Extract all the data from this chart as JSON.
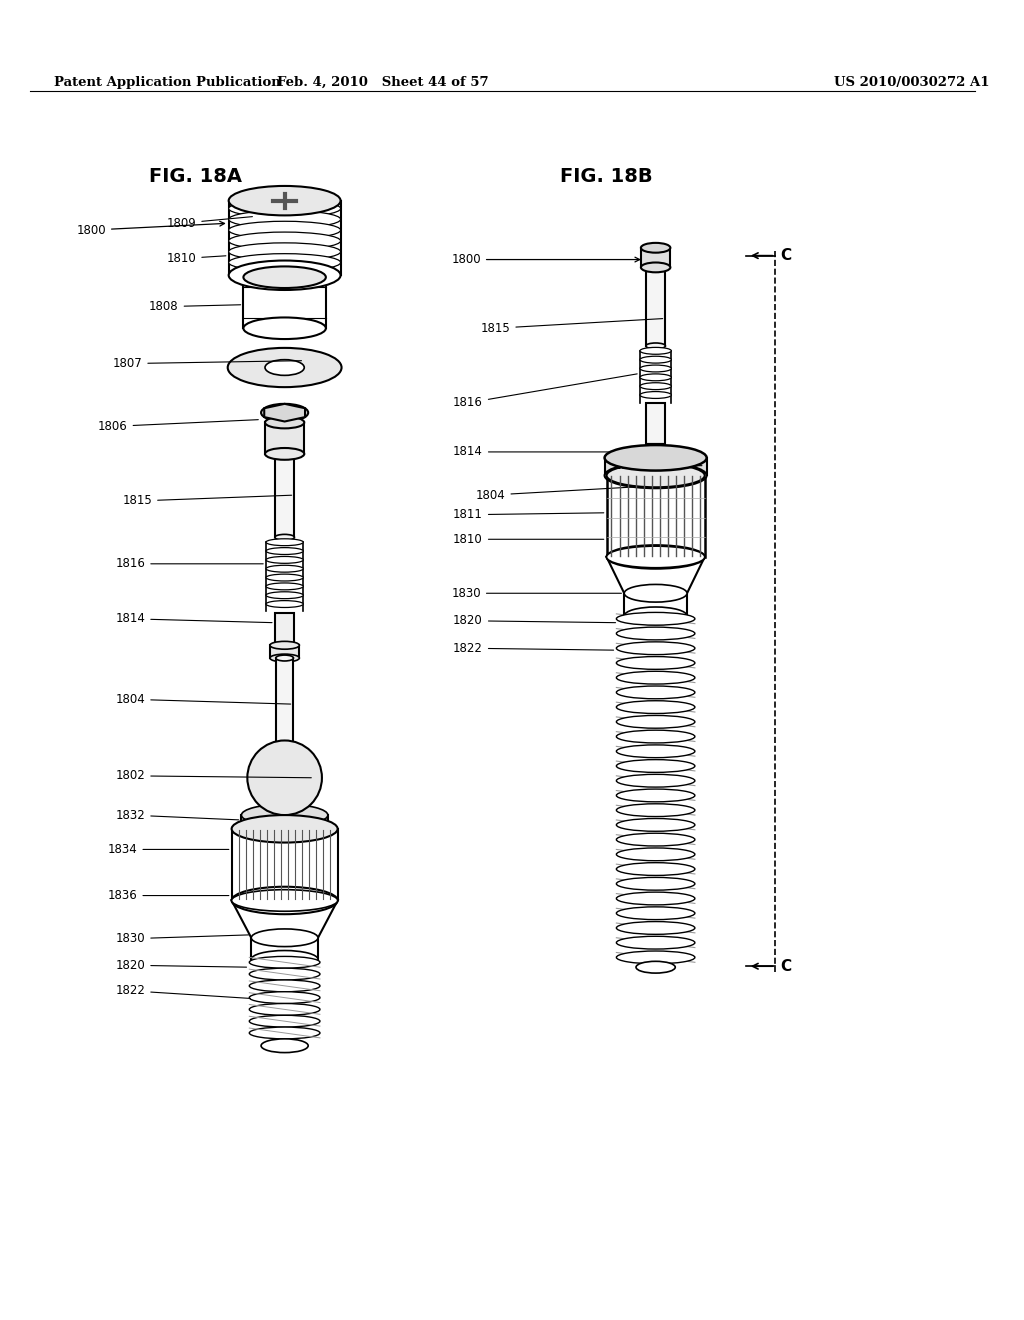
{
  "background_color": "#ffffff",
  "header_left": "Patent Application Publication",
  "header_center": "Feb. 4, 2010   Sheet 44 of 57",
  "header_right": "US 2010/0030272 A1",
  "fig_a_title": "FIG. 18A",
  "fig_b_title": "FIG. 18B"
}
